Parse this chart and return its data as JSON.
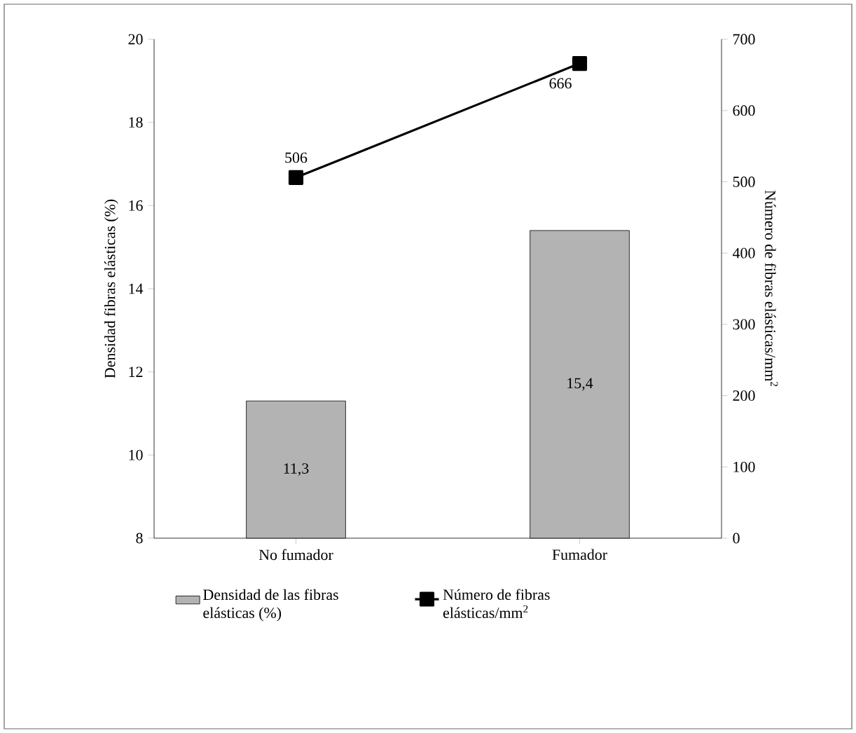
{
  "chart_data": {
    "type": "bar",
    "categories": [
      "No fumador",
      "Fumador"
    ],
    "ylabel": "Densidad fibras elásticas (%)",
    "y2label": "Número de fibras elásticas/mm$^{2}$",
    "ylim": [
      8,
      20
    ],
    "yticks": [
      8,
      10,
      12,
      14,
      16,
      18,
      20
    ],
    "y2lim": [
      0,
      700
    ],
    "y2ticks": [
      0,
      100,
      200,
      300,
      400,
      500,
      600,
      700
    ],
    "legend": "bottom",
    "grid": false,
    "series": [
      {
        "name": "Densidad de las fibras elásticas (%)",
        "type": "bar",
        "color": "#b3b3b3",
        "values": [
          11.3,
          15.4
        ],
        "value_labels": [
          "11,3",
          "15,4"
        ]
      },
      {
        "name": "Número de fibras elásticas/mm$^{2}$",
        "type": "line",
        "axis": "y2",
        "color": "#000000",
        "marker": "square",
        "line_style": "solid",
        "values": [
          506,
          666
        ],
        "data_labels": true
      }
    ]
  }
}
